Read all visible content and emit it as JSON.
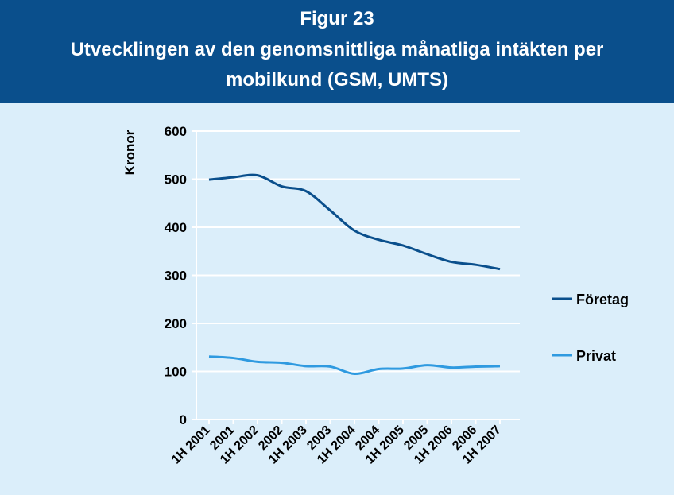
{
  "header": {
    "figure_label": "Figur 23",
    "title_line1": "Utvecklingen av den genomsnittliga månatliga intäkten per",
    "title_line2": "mobilkund (GSM, UMTS)"
  },
  "colors": {
    "header_bg": "#0a4f8c",
    "plot_bg": "#dbeefa",
    "foretag": "#0a4f8c",
    "privat": "#2f9ae0"
  },
  "chart_data": {
    "type": "line",
    "ylabel": "Kronor",
    "ylim": [
      0,
      600
    ],
    "yticks": [
      0,
      100,
      200,
      300,
      400,
      500,
      600
    ],
    "grid": true,
    "legend_position": "right",
    "x_tick_labels": [
      "1H 2001",
      "2001",
      "1H 2002",
      "2002",
      "1H 2003",
      "2003",
      "1H 2004",
      "2004",
      "1H 2005",
      "2005",
      "1H 2006",
      "2006",
      "1H 2007"
    ],
    "series": [
      {
        "name": "Företag",
        "color": "#0a4f8c",
        "values": [
          499,
          504,
          508,
          485,
          475,
          435,
          393,
          374,
          362,
          344,
          328,
          322,
          313
        ]
      },
      {
        "name": "Privat",
        "color": "#2f9ae0",
        "values": [
          131,
          128,
          120,
          118,
          111,
          110,
          95,
          105,
          106,
          113,
          108,
          110,
          111
        ]
      }
    ]
  }
}
